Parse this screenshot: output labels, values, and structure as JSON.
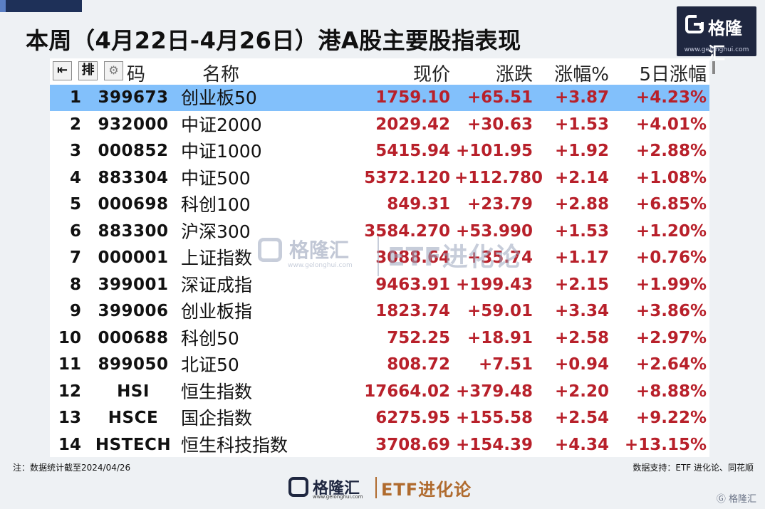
{
  "title": "本周（4月22日-4月26日）港A股主要股指表现",
  "logo": {
    "name": "格隆汇",
    "url": "www.gelonghui.com"
  },
  "table": {
    "toolbar": {
      "first_icon": "⇤",
      "sort_label": "排"
    },
    "headers": {
      "code": "码",
      "name": "名称",
      "price": "现价",
      "change": "涨跌",
      "pct": "涨幅%",
      "pct5": "5日涨幅"
    },
    "rows": [
      {
        "idx": "1",
        "code": "399673",
        "name": "创业板50",
        "price": "1759.10",
        "change": "+65.51",
        "pct": "+3.87",
        "pct5": "+4.23%"
      },
      {
        "idx": "2",
        "code": "932000",
        "name": "中证2000",
        "price": "2029.42",
        "change": "+30.63",
        "pct": "+1.53",
        "pct5": "+4.01%"
      },
      {
        "idx": "3",
        "code": "000852",
        "name": "中证1000",
        "price": "5415.94",
        "change": "+101.95",
        "pct": "+1.92",
        "pct5": "+2.88%"
      },
      {
        "idx": "4",
        "code": "883304",
        "name": "中证500",
        "price": "5372.120",
        "change": "+112.780",
        "pct": "+2.14",
        "pct5": "+1.08%"
      },
      {
        "idx": "5",
        "code": "000698",
        "name": "科创100",
        "price": "849.31",
        "change": "+23.79",
        "pct": "+2.88",
        "pct5": "+6.85%"
      },
      {
        "idx": "6",
        "code": "883300",
        "name": "沪深300",
        "price": "3584.270",
        "change": "+53.990",
        "pct": "+1.53",
        "pct5": "+1.20%"
      },
      {
        "idx": "7",
        "code": "000001",
        "name": "上证指数",
        "price": "3088.64",
        "change": "+35.74",
        "pct": "+1.17",
        "pct5": "+0.76%"
      },
      {
        "idx": "8",
        "code": "399001",
        "name": "深证成指",
        "price": "9463.91",
        "change": "+199.43",
        "pct": "+2.15",
        "pct5": "+1.99%"
      },
      {
        "idx": "9",
        "code": "399006",
        "name": "创业板指",
        "price": "1823.74",
        "change": "+59.01",
        "pct": "+3.34",
        "pct5": "+3.86%"
      },
      {
        "idx": "10",
        "code": "000688",
        "name": "科创50",
        "price": "752.25",
        "change": "+18.91",
        "pct": "+2.58",
        "pct5": "+2.97%"
      },
      {
        "idx": "11",
        "code": "899050",
        "name": "北证50",
        "price": "808.72",
        "change": "+7.51",
        "pct": "+0.94",
        "pct5": "+2.64%"
      },
      {
        "idx": "12",
        "code": "HSI",
        "name": "恒生指数",
        "price": "17664.02",
        "change": "+379.48",
        "pct": "+2.20",
        "pct5": "+8.88%"
      },
      {
        "idx": "13",
        "code": "HSCE",
        "name": "国企指数",
        "price": "6275.95",
        "change": "+155.58",
        "pct": "+2.54",
        "pct5": "+9.22%"
      },
      {
        "idx": "14",
        "code": "HSTECH",
        "name": "恒生科技指数",
        "price": "3708.69",
        "change": "+154.39",
        "pct": "+4.34",
        "pct5": "+13.15%"
      }
    ],
    "selected_row": 0
  },
  "watermark": {
    "name": "格隆汇",
    "url": "www.gelonghui.com",
    "brand": "ETF进化论"
  },
  "footer": {
    "note": "注：数据统计截至2024/04/26",
    "source": "数据支持：ETF 进化论、同花顺",
    "bottom_logo_name": "格隆汇",
    "bottom_logo_url": "www.gelonghui.com",
    "bottom_brand": "ETF进化论",
    "corner_logo": "格隆汇"
  },
  "colors": {
    "up": "#b8202a",
    "selected_row": "#82c0fb",
    "logo_bg": "#1f2740"
  }
}
